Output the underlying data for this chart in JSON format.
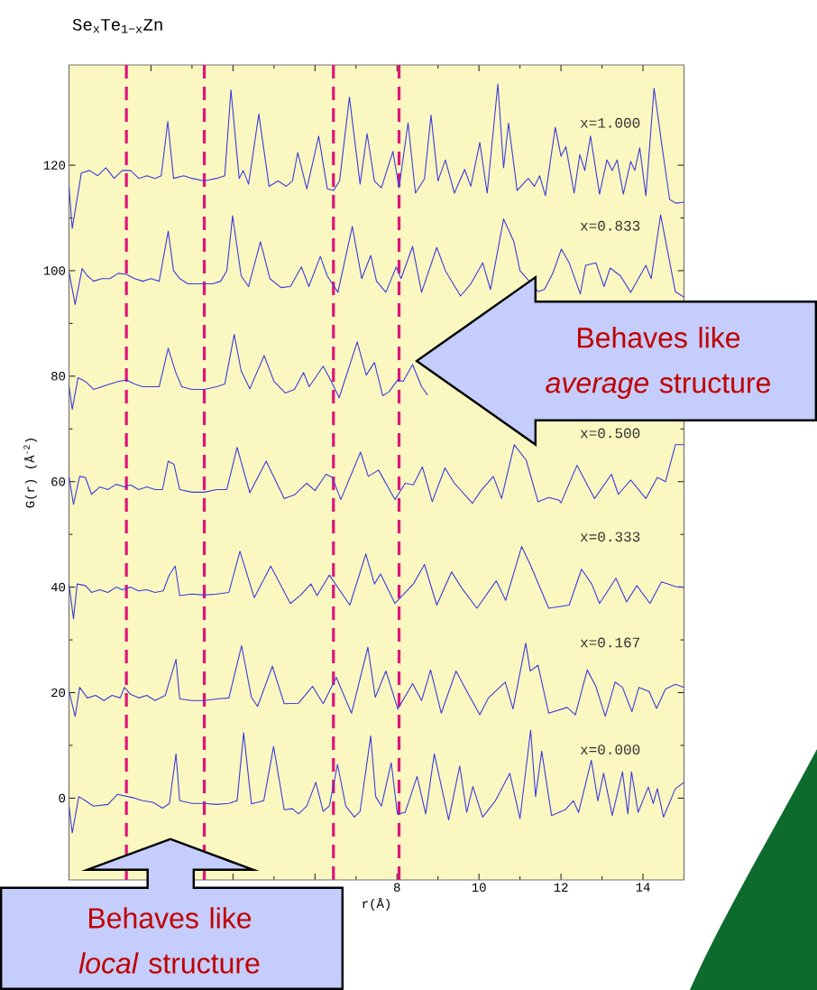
{
  "chart_data": {
    "type": "line",
    "title": "Se$_{x}$Te$_{1−x}$Zn",
    "xlabel": "r(Å)",
    "ylabel": "G(r) (Å$^{-2}$)",
    "xlim": [
      0,
      15
    ],
    "ylim": [
      -15.5,
      139
    ],
    "xticks": [
      {
        "value": 2,
        "label": null
      },
      {
        "value": 4,
        "label": null
      },
      {
        "value": 6,
        "label": null
      },
      8,
      10,
      12,
      14
    ],
    "yticks": [
      0,
      20,
      40,
      60,
      80,
      100,
      120
    ],
    "series": [
      {
        "name": "x=1.000",
        "color": "#3b3bdc",
        "x": [
          0.0,
          0.08,
          0.3,
          0.5,
          0.7,
          0.9,
          1.1,
          1.3,
          1.5,
          1.7,
          1.9,
          2.1,
          2.25,
          2.41,
          2.55,
          2.8,
          3.0,
          3.3,
          3.6,
          3.8,
          3.95,
          4.15,
          4.25,
          4.38,
          4.63,
          4.88,
          5.1,
          5.3,
          5.45,
          5.58,
          5.8,
          6.09,
          6.3,
          6.45,
          6.6,
          6.84,
          7.1,
          7.27,
          7.45,
          7.62,
          7.9,
          8.05,
          8.27,
          8.45,
          8.67,
          8.83,
          9.0,
          9.18,
          9.4,
          9.65,
          9.8,
          10.02,
          10.2,
          10.46,
          10.6,
          10.72,
          10.93,
          11.2,
          11.35,
          11.48,
          11.62,
          11.86,
          12.0,
          12.12,
          12.32,
          12.46,
          12.58,
          12.72,
          12.94,
          13.12,
          13.25,
          13.37,
          13.52,
          13.7,
          13.8,
          13.92,
          14.07,
          14.27,
          14.46,
          14.65,
          14.8,
          15.0
        ],
        "values": [
          116,
          108,
          118.5,
          119,
          118,
          119.5,
          117.5,
          119,
          119,
          117.5,
          118,
          117.5,
          118,
          128.3,
          117.5,
          118,
          117.5,
          117,
          117.5,
          118,
          134.3,
          117.5,
          119,
          116.4,
          129.7,
          116,
          117,
          116,
          117,
          122.4,
          115.5,
          125.5,
          115.5,
          115.2,
          117,
          132.9,
          116.4,
          126,
          117,
          115.7,
          122.6,
          115.7,
          128,
          114.7,
          117.4,
          129.5,
          117,
          121,
          114.7,
          119.2,
          116,
          124.3,
          114.7,
          135.4,
          119.5,
          128,
          115.2,
          117.5,
          116,
          118,
          114.2,
          127.2,
          121.7,
          123.5,
          114.7,
          122,
          119,
          125.5,
          114.5,
          121,
          119,
          121,
          114.5,
          120.7,
          119,
          123.3,
          114.2,
          134.6,
          123.8,
          113.5,
          112.8,
          113
        ]
      },
      {
        "name": "x=0.833",
        "color": "#3b3bdc",
        "x": [
          0.0,
          0.15,
          0.32,
          0.45,
          0.6,
          0.8,
          1.0,
          1.2,
          1.4,
          1.6,
          1.8,
          2.0,
          2.2,
          2.42,
          2.55,
          2.7,
          2.9,
          3.2,
          3.5,
          3.7,
          3.85,
          3.99,
          4.2,
          4.38,
          4.67,
          4.9,
          5.17,
          5.4,
          5.67,
          5.85,
          6.13,
          6.3,
          6.56,
          6.91,
          7.14,
          7.36,
          7.5,
          7.73,
          7.98,
          8.1,
          8.38,
          8.6,
          8.97,
          9.18,
          9.55,
          9.8,
          10.09,
          10.28,
          10.6,
          10.85,
          11.0,
          11.45,
          11.6,
          11.8,
          12.01,
          12.2,
          12.47,
          12.6,
          12.85,
          13.05,
          13.2,
          13.45,
          13.7,
          14.07,
          14.2,
          14.43,
          14.79,
          15.0
        ],
        "values": [
          99.8,
          93.6,
          100.4,
          99,
          98,
          98.5,
          98.5,
          99.5,
          99.3,
          98.5,
          98,
          98.5,
          98,
          107.5,
          100,
          98.5,
          97.5,
          97.5,
          97.5,
          98,
          100,
          110.4,
          99,
          97,
          105.5,
          98.5,
          96.8,
          97,
          100.7,
          97,
          102.7,
          99,
          95.9,
          108.4,
          98.5,
          102.9,
          98,
          95.9,
          100.7,
          98.5,
          104.6,
          95.9,
          104.4,
          100,
          95.2,
          97.5,
          101.5,
          96.4,
          109.8,
          105.5,
          100,
          96,
          96.5,
          99.5,
          104.1,
          101.5,
          95.6,
          101,
          101.5,
          97,
          100.5,
          99,
          95.9,
          101,
          98.5,
          110.6,
          96,
          95
        ]
      },
      {
        "color": "#3b3bdc",
        "x": [
          0.0,
          0.08,
          0.22,
          0.4,
          0.6,
          0.8,
          1.0,
          1.2,
          1.4,
          1.6,
          1.8,
          2.0,
          2.2,
          2.42,
          2.6,
          2.75,
          3.0,
          3.3,
          3.6,
          3.8,
          4.03,
          4.2,
          4.41,
          4.76,
          5.0,
          5.28,
          5.5,
          5.72,
          5.86,
          6.2,
          6.4,
          6.59,
          7.03,
          7.25,
          7.45,
          7.65,
          7.8,
          8.02,
          8.15,
          8.38,
          8.6,
          8.75
        ],
        "values": [
          78.2,
          73.7,
          79.7,
          79,
          77.5,
          78,
          78.5,
          79,
          79.3,
          78.5,
          78,
          78,
          78,
          85.3,
          80.8,
          78,
          77.5,
          77.5,
          78,
          78.5,
          87.9,
          81,
          77.6,
          83.9,
          79,
          76.8,
          77.5,
          80.7,
          78,
          81.9,
          79,
          75.9,
          86.5,
          80.2,
          82.6,
          76.3,
          77,
          79.3,
          79,
          82.2,
          78,
          76.4
        ]
      },
      {
        "name": "x=0.500",
        "color": "#3b3bdc",
        "x": [
          0.0,
          0.11,
          0.26,
          0.4,
          0.55,
          0.75,
          0.95,
          1.15,
          1.35,
          1.5,
          1.7,
          1.9,
          2.1,
          2.28,
          2.42,
          2.56,
          2.7,
          3.0,
          3.3,
          3.6,
          3.85,
          4.1,
          4.41,
          4.81,
          5.25,
          5.5,
          5.8,
          6.0,
          6.27,
          6.42,
          6.63,
          7.11,
          7.3,
          7.55,
          7.95,
          8.2,
          8.4,
          8.62,
          8.86,
          9.17,
          9.4,
          9.84,
          10.05,
          10.35,
          10.55,
          10.86,
          11.15,
          11.44,
          11.7,
          11.95,
          12.0,
          12.39,
          12.6,
          12.82,
          13.23,
          13.4,
          13.7,
          14.07,
          14.35,
          14.55,
          14.79,
          15.0
        ],
        "values": [
          61,
          55.7,
          61,
          60.8,
          57.6,
          59,
          58.5,
          59.5,
          59,
          59.4,
          58.5,
          59,
          58.5,
          58.5,
          63.9,
          63.3,
          58.5,
          58,
          58,
          58.5,
          58.5,
          66.5,
          57.9,
          63.9,
          56.8,
          57.5,
          59.7,
          58.3,
          61.4,
          60.8,
          56.6,
          65.6,
          61,
          62.2,
          56.6,
          59.7,
          59.4,
          62.8,
          56.2,
          62.6,
          59.7,
          55.9,
          58.3,
          61,
          56.8,
          67,
          64.1,
          56.2,
          57,
          56.5,
          56,
          63.1,
          60,
          56.8,
          61.4,
          57.6,
          60.3,
          56.8,
          60.8,
          60,
          67,
          67
        ]
      },
      {
        "name": "x=0.333",
        "color": "#3b3bdc",
        "x": [
          0.0,
          0.11,
          0.2,
          0.4,
          0.55,
          0.75,
          0.95,
          1.15,
          1.3,
          1.5,
          1.7,
          1.9,
          2.1,
          2.3,
          2.44,
          2.59,
          2.7,
          3.0,
          3.3,
          3.6,
          3.9,
          4.17,
          4.52,
          4.92,
          5.4,
          5.65,
          5.9,
          6.05,
          6.35,
          6.85,
          7.24,
          7.45,
          7.6,
          7.95,
          8.4,
          8.67,
          8.97,
          9.33,
          9.6,
          9.95,
          10.42,
          10.65,
          11.04,
          11.25,
          11.7,
          12.2,
          12.5,
          12.75,
          12.94,
          13.34,
          13.6,
          13.85,
          14.17,
          14.45,
          14.8,
          15.0
        ],
        "values": [
          40.6,
          34,
          40.6,
          40.3,
          39,
          39.5,
          39,
          40,
          39.5,
          40,
          39.3,
          39.5,
          39,
          39.3,
          42.2,
          44,
          38.4,
          38.7,
          38.5,
          38.7,
          39,
          46.8,
          38,
          44,
          36.9,
          38.5,
          40.6,
          38.4,
          42.3,
          36.6,
          46.3,
          40.6,
          42.5,
          36.9,
          40.6,
          44.3,
          36.6,
          42.9,
          39.6,
          36,
          41.2,
          37.5,
          47.7,
          44.3,
          36,
          36.6,
          43.4,
          40.6,
          36.9,
          41.7,
          37.2,
          40.3,
          36.9,
          41,
          40.1,
          40
        ]
      },
      {
        "name": "x=0.167",
        "color": "#3b3bdc",
        "x": [
          0.0,
          0.15,
          0.26,
          0.45,
          0.65,
          0.85,
          1.05,
          1.25,
          1.35,
          1.5,
          1.7,
          1.9,
          2.1,
          2.35,
          2.61,
          2.7,
          3.0,
          3.3,
          3.6,
          3.9,
          4.21,
          4.45,
          4.6,
          4.96,
          5.25,
          5.6,
          5.94,
          6.2,
          6.52,
          6.89,
          7.29,
          7.47,
          7.73,
          8.02,
          8.38,
          8.6,
          8.82,
          9.08,
          9.44,
          9.7,
          10.02,
          10.23,
          10.64,
          10.83,
          11.14,
          11.25,
          11.44,
          11.7,
          12.15,
          12.35,
          12.64,
          12.85,
          13.08,
          13.32,
          13.5,
          13.73,
          13.9,
          14.15,
          14.33,
          14.55,
          14.79,
          15.0
        ],
        "values": [
          20.3,
          15.5,
          21,
          19,
          19.5,
          18.5,
          19.5,
          19,
          21,
          19.7,
          19,
          19.5,
          18.5,
          19.5,
          26.3,
          18.8,
          18.5,
          18.5,
          18.8,
          19,
          28.9,
          19.1,
          17.4,
          25,
          17.9,
          18,
          21.2,
          17.9,
          22.9,
          16.1,
          28.6,
          19.1,
          24.1,
          16.9,
          21.7,
          18.5,
          24.3,
          16.1,
          24.1,
          20.3,
          15.8,
          19,
          22,
          16.9,
          29.4,
          24.1,
          25.2,
          16.1,
          17.2,
          15.8,
          24.3,
          21.2,
          15.5,
          22,
          21,
          16.4,
          21,
          20.2,
          17,
          20.7,
          21.6,
          21
        ]
      },
      {
        "name": "x=0.000",
        "color": "#3b3bdc",
        "x": [
          0.0,
          0.08,
          0.24,
          0.4,
          0.6,
          0.95,
          1.18,
          1.43,
          1.6,
          1.8,
          2.05,
          2.28,
          2.45,
          2.61,
          2.7,
          3.0,
          3.3,
          3.6,
          3.9,
          4.1,
          4.26,
          4.45,
          4.75,
          4.99,
          5.25,
          5.45,
          5.6,
          5.8,
          6.02,
          6.2,
          6.35,
          6.55,
          6.75,
          6.96,
          7.1,
          7.36,
          7.48,
          7.62,
          7.86,
          8.01,
          8.2,
          8.49,
          8.7,
          8.91,
          9.26,
          9.53,
          9.7,
          9.85,
          10.09,
          10.4,
          10.75,
          11.0,
          11.26,
          11.38,
          11.53,
          11.77,
          12.1,
          12.3,
          12.43,
          12.74,
          12.9,
          13.04,
          13.25,
          13.5,
          13.63,
          13.72,
          13.88,
          14.13,
          14.25,
          14.35,
          14.5,
          14.79,
          15.0
        ],
        "values": [
          -1.5,
          -6.6,
          0.3,
          -0.5,
          -1.5,
          -1.2,
          0.7,
          0.3,
          0,
          -0.5,
          -0.8,
          -1.9,
          -1,
          8.4,
          -0.5,
          -1,
          -1,
          -1.2,
          -1,
          -0.5,
          12.4,
          -1.1,
          -0.5,
          9.8,
          -2.2,
          -2,
          -3,
          -1.5,
          3,
          -2.5,
          -1.5,
          6.4,
          -1.5,
          -3.6,
          -2.5,
          11.8,
          0.3,
          -1.5,
          6.7,
          -3,
          -2.7,
          4.1,
          -3,
          8.4,
          -4.1,
          6.1,
          -2.7,
          2.2,
          -3.6,
          -0.5,
          4.7,
          -3.9,
          12.9,
          0.3,
          8.9,
          -3.3,
          -2.2,
          -0.5,
          -2.7,
          7.2,
          -0.5,
          4.7,
          -3.3,
          5,
          -3,
          5,
          -2.7,
          2.1,
          -1,
          1.8,
          -3.6,
          1.8,
          3
        ]
      }
    ],
    "ref_lines": [
      {
        "axis": "x",
        "value": 1.4,
        "color": "#e0147a",
        "line_style": "dashed"
      },
      {
        "axis": "x",
        "value": 3.3,
        "color": "#e0147a",
        "line_style": "dashed"
      },
      {
        "axis": "x",
        "value": 6.45,
        "color": "#e0147a",
        "line_style": "dashed"
      },
      {
        "axis": "x",
        "value": 8.05,
        "color": "#e0147a",
        "line_style": "dashed"
      }
    ],
    "annotations": [
      "Behaves like *average* structure",
      "Behaves like *local* structure"
    ]
  }
}
